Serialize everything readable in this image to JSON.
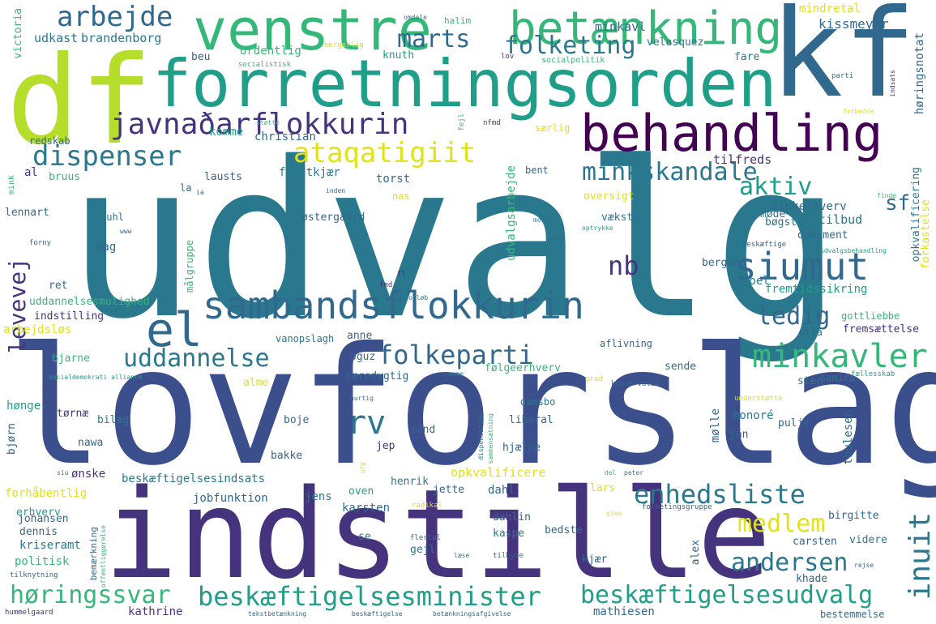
{
  "colors": {
    "navy": "#3b4f8c",
    "indigo": "#46337e",
    "teal": "#2a788e",
    "blue": "#31688e",
    "green": "#35b779",
    "mint": "#1f9e89",
    "lime": "#b5de2b",
    "yellow": "#e0e317",
    "purple": "#440154"
  },
  "words": {
    "udvalg": "udvalg",
    "lovforslag": "lovforslag",
    "indstille": "indstille",
    "df": "df",
    "kf": "kf",
    "forretningsorden": "forretningsorden",
    "venstre": "venstre",
    "betaenkning": "betænkning",
    "behandling": "behandling",
    "sambandsflokkurin": "sambandsflokkurin",
    "el": "el",
    "javnadarflokkurin": "javnaðarflokkurin",
    "siumut": "siumut",
    "arbejde": "arbejde",
    "dispenser": "dispenser",
    "ataqatigiit": "ataqatigiit",
    "folketing": "folketing",
    "marts": "marts",
    "minkskandale": "minkskandale",
    "enhedsliste": "enhedsliste",
    "minkavler": "minkavler",
    "folkeparti": "folkeparti",
    "uddannelse": "uddannelse",
    "rv": "rv",
    "hoeringssvar": "høringssvar",
    "beskaeftigelsesminister": "beskæftigelsesminister",
    "beskaeftigelsesudvalg": "beskæftigelsesudvalg",
    "aktiv": "aktiv",
    "ledig": "ledig",
    "nb": "nb",
    "andersen": "andersen",
    "inuit": "inuit",
    "medlem": "medlem",
    "sf": "sf",
    "levevej": "levevej",
    "minkavl": "minkavl",
    "mindretal": "mindretal",
    "kissmeyer": "kissmeyer",
    "udkast": "udkast",
    "brandenborg": "brandenborg",
    "victoria": "victoria",
    "halim": "halim",
    "omdele": "omdele",
    "knuth": "knuth",
    "socialpolitik": "socialpolitik",
    "velasquez": "velasquez",
    "hoeringsnotat": "høringsnotat",
    "fare": "fare",
    "beu": "beu",
    "ordentlig": "ordentlig",
    "socialistisk": "socialistisk",
    "borgerlig": "borgerlig",
    "lov": "lov",
    "indsats": "indsats",
    "parti": "parti",
    "forbedre": "forbedre",
    "redskab": "redskab",
    "komme": "komme",
    "christian": "christian",
    "saerlig": "særlig",
    "stoette": "støtte",
    "fejl": "fejl",
    "nfmd": "nfmd",
    "mink": "mink",
    "al": "al",
    "bruus": "bruus",
    "lausts": "lausts",
    "flydtkjaer": "flydtkjær",
    "torst": "torst",
    "bent": "bent",
    "tilfreds": "tilfreds",
    "udvalgsarbejde": "udvalgsarbejde",
    "oversigt": "oversigt",
    "minkerhverv": "minkerhverv",
    "opkvalificering": "opkvalificering",
    "la": "la",
    "ia": "ia",
    "inden": "inden",
    "nas": "nas",
    "finde": "finde",
    "forkastelse": "forkastelse",
    "lennart": "lennart",
    "juhl": "juhl",
    "oestergaard": "østergaard",
    "vaekst": "vækst",
    "moede": "møde",
    "boegsted": "bøgsted",
    "tilbud": "tilbud",
    "maalgruppe": "målgruppe",
    "www": "www",
    "forny": "forny",
    "dag": "dag",
    "morten": "morten",
    "optrykke": "optrykke",
    "dokument": "dokument",
    "beskaeftige": "beskæftige",
    "sp": "sp",
    "udvalgsbehandling": "udvalgsbehandling",
    "bergman": "bergman",
    "ret": "ret",
    "olldag": "olldag",
    "fmd": "fmd",
    "ft": "ft",
    "joel": "joel",
    "fremtidssikring": "fremtidssikring",
    "uddannelsesmulighed": "uddannelsesmulighed",
    "indstilling": "indstilling",
    "sagsforloeb": "sagsforløb",
    "gottliebbe": "gottliebbe",
    "arbejdsloes": "arbejdsløs",
    "vanopslagh": "vanopslagh",
    "anne": "anne",
    "ulla": "ulla",
    "fremsaettelse": "fremsættelse",
    "bjarne": "bjarne",
    "aflivning": "aflivning",
    "oguz": "oguz",
    "sende": "sende",
    "socialdemokrati_alliance": "socialdemokrati alliance",
    "ramme": "ramme",
    "grad": "grad",
    "konservativ": "konservativ",
    "faellesskab": "fællesskab",
    "samira": "samira",
    "alme": "alme",
    "baeredygtig": "bæredygtig",
    "foelgeerhverv": "følgeerhverv",
    "sten": "sten",
    "hoenge": "hønge",
    "hurtig": "hurtig",
    "understoette": "understøtte",
    "toernae": "tørnæ",
    "damsbo": "damsbo",
    "honore": "honoré",
    "pulje": "pulje",
    "bilag": "bilag",
    "liberal": "liberal",
    "moelle": "mølle",
    "thulesen": "thulesen",
    "bjoern": "bjørn",
    "boje": "boje",
    "sand": "sand",
    "jan": "jan",
    "nawa": "nawa",
    "jep": "jep",
    "hjaelpe": "hjælpe",
    "bakke": "bakke",
    "dispensation": "dispensation",
    "sammensaetning": "sammensætning",
    "siu": "siu",
    "oenske": "ønske",
    "ufg": "ufg",
    "del": "del",
    "peter": "peter",
    "beskaeftigelsesindsats": "beskæftigelsesindsats",
    "opkvalificere": "opkvalificere",
    "henrik": "henrik",
    "lars": "lars",
    "forhaabentlig": "forhåbentlig",
    "jobfunktion": "jobfunktion",
    "jens": "jens",
    "oven": "oven",
    "jette": "jette",
    "dahl": "dahl",
    "erhverv": "erhverv",
    "johansen": "johansen",
    "karsten": "karsten",
    "radikal": "radikal",
    "dahlin": "dahlin",
    "birgitte": "birgitte",
    "folketingsgruppe": "folketingsgruppe",
    "give": "give",
    "dennis": "dennis",
    "kriseramt": "kriseramt",
    "se": "se",
    "flertal": "flertal",
    "kaspe": "kaspe",
    "bedste": "bedste",
    "carsten": "carsten",
    "videre": "videre",
    "politisk": "politisk",
    "gejl": "gejl",
    "laese": "læse",
    "tilbyde": "tilbyde",
    "kjaer": "kjær",
    "alex": "alex",
    "rejse": "rejse",
    "tilknytning": "tilknytning",
    "bemaerkning": "bemærkning",
    "offentliggoerelse": "offentliggørelse",
    "khade": "khade",
    "kathrine": "kathrine",
    "mathiesen": "mathiesen",
    "hummelgaard": "hummelgaard",
    "tekstbetaenkning": "tekstbetænkning",
    "beskaeftigelse": "beskæftigelse",
    "betaenkningsafgivelse": "betænkningsafgivelse",
    "bestemmelse": "bestemmelse"
  }
}
